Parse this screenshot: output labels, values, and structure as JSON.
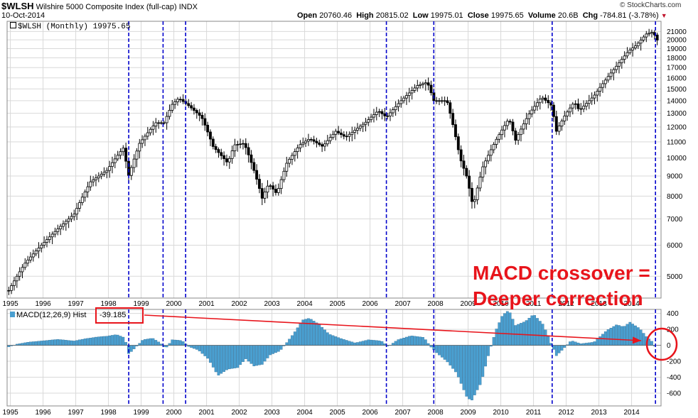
{
  "header": {
    "symbol": "$WLSH",
    "name": "Wilshire 5000 Composite Index (full-cap)",
    "exchange": "INDX",
    "date": "10-Oct-2014",
    "open_label": "Open",
    "open": "20760.46",
    "high_label": "High",
    "high": "20815.02",
    "low_label": "Low",
    "low": "19975.01",
    "close_label": "Close",
    "close": "19975.65",
    "volume_label": "Volume",
    "volume": "20.6B",
    "chg_label": "Chg",
    "chg": "-784.81 (-3.78%)",
    "watermark": "© StockCharts.com"
  },
  "main_legend": "$WLSH (Monthly) 19975.65",
  "macd_legend": "MACD(12,26,9) Hist",
  "macd_value": "-39.185",
  "annotation": {
    "line1": "MACD crossover =",
    "line2": "Deeper correction"
  },
  "colors": {
    "grid": "#d9d9d9",
    "candle": "#000000",
    "histogram": "#4a9fd0",
    "histogram_edge": "#1f5f8a",
    "vline": "#0000cc",
    "annotation": "#e8141b"
  },
  "chart_data": [
    {
      "type": "candlestick",
      "title": "$WLSH (Monthly)",
      "scale": "log",
      "x_ticks": [
        "1995",
        "1996",
        "1997",
        "1998",
        "1999",
        "2000",
        "2001",
        "2002",
        "2003",
        "2004",
        "2005",
        "2006",
        "2007",
        "2008",
        "2009",
        "2010",
        "2011",
        "2012",
        "2013",
        "2014"
      ],
      "y_ticks": [
        5000,
        6000,
        7000,
        8000,
        9000,
        10000,
        11000,
        12000,
        13000,
        14000,
        15000,
        16000,
        17000,
        18000,
        19000,
        20000,
        21000
      ],
      "ylim": [
        4400,
        22300
      ],
      "x_range": [
        1994.95,
        2014.95
      ],
      "key_points": [
        [
          1995.0,
          4600
        ],
        [
          1995.5,
          5400
        ],
        [
          1996.0,
          6000
        ],
        [
          1996.5,
          6600
        ],
        [
          1997.0,
          7200
        ],
        [
          1997.5,
          8700
        ],
        [
          1998.0,
          9300
        ],
        [
          1998.5,
          10600
        ],
        [
          1998.67,
          9000
        ],
        [
          1999.0,
          10900
        ],
        [
          1999.5,
          12300
        ],
        [
          1999.75,
          12300
        ],
        [
          2000.0,
          13700
        ],
        [
          2000.2,
          14200
        ],
        [
          2000.5,
          13600
        ],
        [
          2000.9,
          12700
        ],
        [
          2001.25,
          10700
        ],
        [
          2001.7,
          9700
        ],
        [
          2001.9,
          10800
        ],
        [
          2002.2,
          10900
        ],
        [
          2002.5,
          9300
        ],
        [
          2002.75,
          7900
        ],
        [
          2002.95,
          8600
        ],
        [
          2003.2,
          8100
        ],
        [
          2003.5,
          9700
        ],
        [
          2003.9,
          10800
        ],
        [
          2004.2,
          11200
        ],
        [
          2004.6,
          10700
        ],
        [
          2005.0,
          11700
        ],
        [
          2005.3,
          11300
        ],
        [
          2005.9,
          12300
        ],
        [
          2006.3,
          13200
        ],
        [
          2006.55,
          12700
        ],
        [
          2007.0,
          14000
        ],
        [
          2007.5,
          15300
        ],
        [
          2007.8,
          15600
        ],
        [
          2008.0,
          14000
        ],
        [
          2008.4,
          14000
        ],
        [
          2008.8,
          10000
        ],
        [
          2009.0,
          9000
        ],
        [
          2009.2,
          7500
        ],
        [
          2009.5,
          9500
        ],
        [
          2009.9,
          11100
        ],
        [
          2010.3,
          12600
        ],
        [
          2010.5,
          11100
        ],
        [
          2010.9,
          12900
        ],
        [
          2011.3,
          14300
        ],
        [
          2011.6,
          13600
        ],
        [
          2011.75,
          11700
        ],
        [
          2012.0,
          12800
        ],
        [
          2012.3,
          13900
        ],
        [
          2012.45,
          13200
        ],
        [
          2012.9,
          14400
        ],
        [
          2013.3,
          16000
        ],
        [
          2013.6,
          17200
        ],
        [
          2013.95,
          18700
        ],
        [
          2014.2,
          19400
        ],
        [
          2014.5,
          20700
        ],
        [
          2014.72,
          20950
        ],
        [
          2014.8,
          19975.65
        ]
      ]
    },
    {
      "type": "bar",
      "title": "MACD(12,26,9) Hist",
      "y_ticks": [
        -600,
        -400,
        -200,
        0,
        200,
        400
      ],
      "ylim": [
        -760,
        450
      ],
      "last_value": -39.185,
      "key_points": [
        [
          1995.0,
          -20
        ],
        [
          1995.25,
          15
        ],
        [
          1995.6,
          40
        ],
        [
          1996.0,
          55
        ],
        [
          1996.5,
          75
        ],
        [
          1997.0,
          55
        ],
        [
          1997.3,
          80
        ],
        [
          1997.7,
          105
        ],
        [
          1998.0,
          115
        ],
        [
          1998.3,
          135
        ],
        [
          1998.55,
          95
        ],
        [
          1998.67,
          -110
        ],
        [
          1998.85,
          -40
        ],
        [
          1999.1,
          70
        ],
        [
          1999.4,
          90
        ],
        [
          1999.65,
          25
        ],
        [
          1999.8,
          -40
        ],
        [
          2000.0,
          70
        ],
        [
          2000.3,
          60
        ],
        [
          2000.5,
          -15
        ],
        [
          2000.8,
          -60
        ],
        [
          2001.1,
          -170
        ],
        [
          2001.4,
          -380
        ],
        [
          2001.7,
          -300
        ],
        [
          2002.0,
          -280
        ],
        [
          2002.25,
          -170
        ],
        [
          2002.5,
          -260
        ],
        [
          2002.75,
          -240
        ],
        [
          2003.0,
          -120
        ],
        [
          2003.3,
          -70
        ],
        [
          2003.7,
          140
        ],
        [
          2004.0,
          320
        ],
        [
          2004.2,
          340
        ],
        [
          2004.5,
          260
        ],
        [
          2004.8,
          140
        ],
        [
          2005.2,
          80
        ],
        [
          2005.6,
          30
        ],
        [
          2006.0,
          70
        ],
        [
          2006.4,
          55
        ],
        [
          2006.6,
          -15
        ],
        [
          2006.9,
          70
        ],
        [
          2007.3,
          120
        ],
        [
          2007.7,
          100
        ],
        [
          2007.9,
          -15
        ],
        [
          2008.1,
          -100
        ],
        [
          2008.4,
          -200
        ],
        [
          2008.7,
          -350
        ],
        [
          2009.0,
          -640
        ],
        [
          2009.15,
          -700
        ],
        [
          2009.45,
          -470
        ],
        [
          2009.7,
          -80
        ],
        [
          2009.9,
          190
        ],
        [
          2010.1,
          380
        ],
        [
          2010.3,
          440
        ],
        [
          2010.5,
          250
        ],
        [
          2010.8,
          300
        ],
        [
          2011.05,
          390
        ],
        [
          2011.35,
          260
        ],
        [
          2011.6,
          10
        ],
        [
          2011.75,
          -130
        ],
        [
          2011.95,
          -50
        ],
        [
          2012.2,
          60
        ],
        [
          2012.5,
          20
        ],
        [
          2012.9,
          40
        ],
        [
          2013.3,
          190
        ],
        [
          2013.6,
          260
        ],
        [
          2013.8,
          230
        ],
        [
          2014.0,
          290
        ],
        [
          2014.3,
          210
        ],
        [
          2014.5,
          110
        ],
        [
          2014.7,
          40
        ],
        [
          2014.78,
          -39.185
        ]
      ]
    }
  ],
  "event_markers": [
    1998.67,
    1999.72,
    2000.41,
    2006.55,
    2008.0,
    2011.62,
    2014.78
  ]
}
